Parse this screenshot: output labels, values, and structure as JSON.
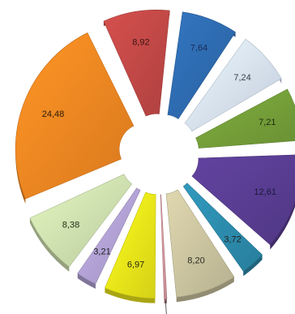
{
  "chart_data": {
    "type": "pie",
    "exploded": true,
    "three_d": true,
    "title": "",
    "values": [
      7.64,
      7.24,
      7.21,
      12.61,
      3.72,
      8.2,
      1,
      6.97,
      3.21,
      8.38,
      24.48,
      8.92
    ],
    "labels": [
      "7,64",
      "7,24",
      "7,21",
      "12,61",
      "3,72",
      "8,20",
      "1",
      "6,97",
      "3,21",
      "8,38",
      "24,48",
      "8,92"
    ],
    "colors": [
      "#2f6db4",
      "#dbe7f8",
      "#77a23a",
      "#5b3e95",
      "#2d8fb1",
      "#cfc8a3",
      "#d99aa2",
      "#f1ec1a",
      "#b6a6da",
      "#d3e6b3",
      "#f58a22",
      "#c64a48"
    ],
    "label_colors": [
      "#1b2c55",
      "#3a3f4a",
      "#1d2a12",
      "#1b1a3a",
      "#222222",
      "#2a2a20",
      "#222222",
      "#2a2a10",
      "#222222",
      "#223018",
      "#2b1a08",
      "#3a1414"
    ],
    "legend": "none"
  }
}
